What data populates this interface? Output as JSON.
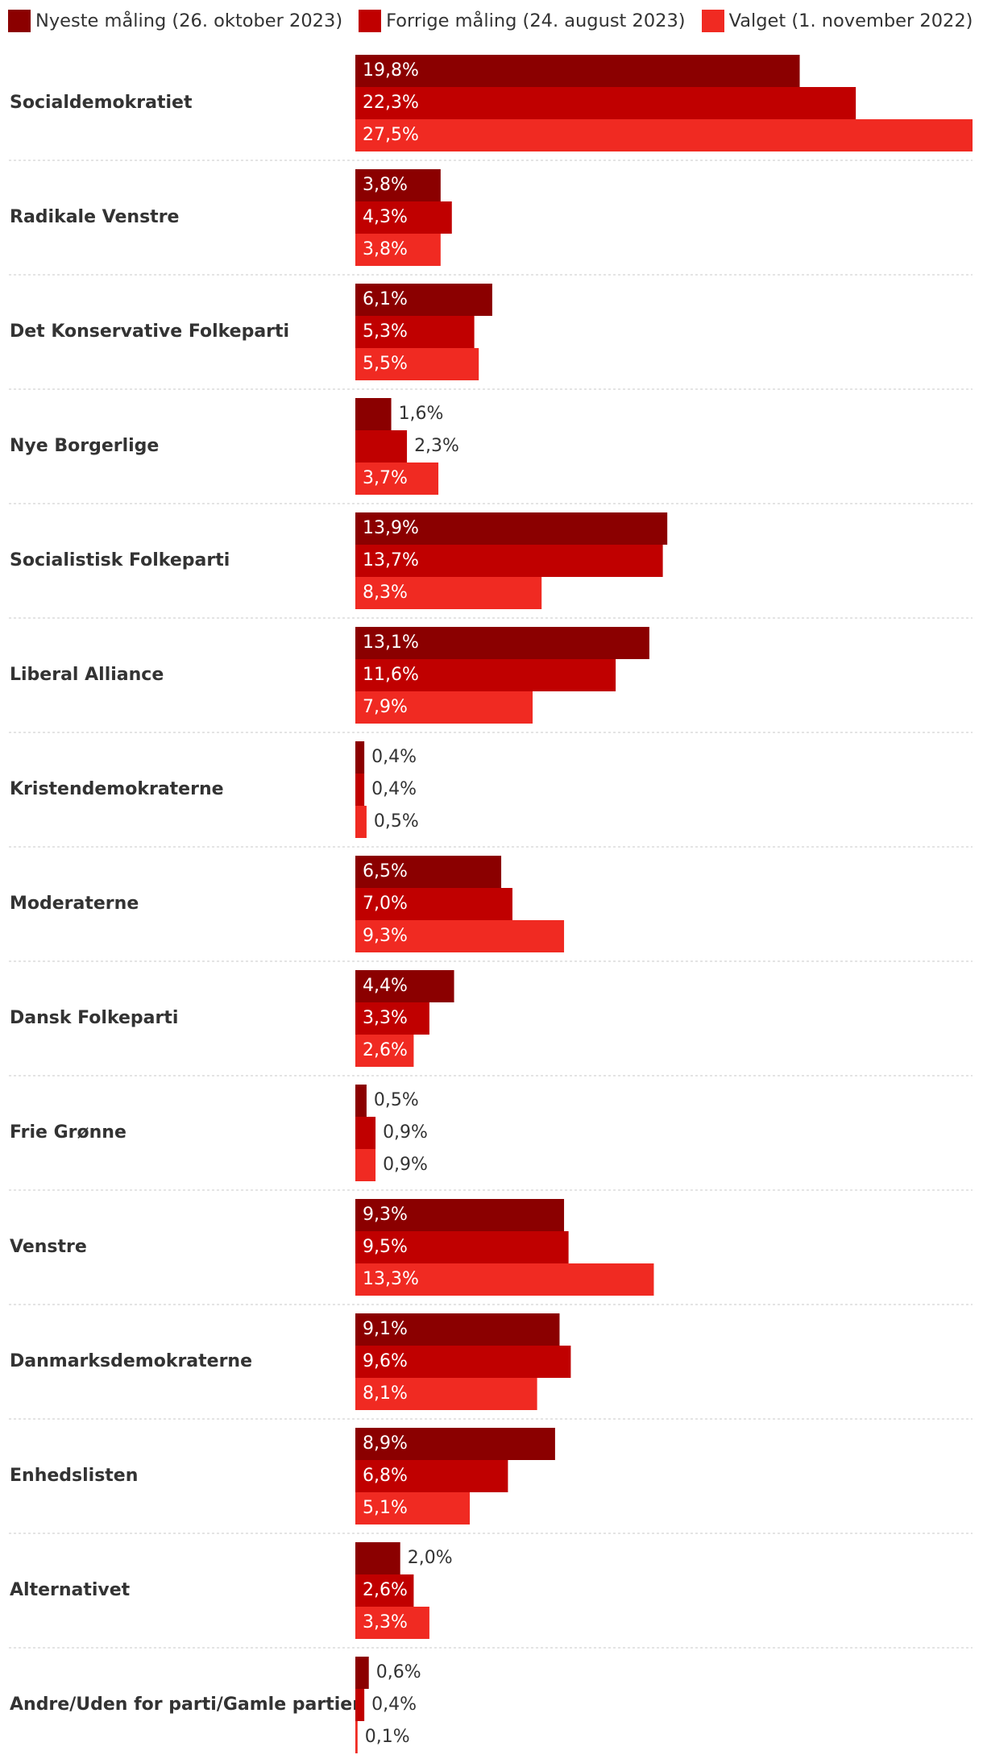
{
  "chart_data": {
    "type": "bar",
    "orientation": "horizontal",
    "categories": [
      "Socialdemokratiet",
      "Radikale Venstre",
      "Det Konservative Folkeparti",
      "Nye Borgerlige",
      "Socialistisk Folkeparti",
      "Liberal Alliance",
      "Kristendemokraterne",
      "Moderaterne",
      "Dansk Folkeparti",
      "Frie Grønne",
      "Venstre",
      "Danmarksdemokraterne",
      "Enhedslisten",
      "Alternativet",
      "Andre/Uden for parti/Gamle partier"
    ],
    "series": [
      {
        "name": "Nyeste måling (26. oktober 2023)",
        "color": "#8b0000",
        "values": [
          19.8,
          3.8,
          6.1,
          1.6,
          13.9,
          13.1,
          0.4,
          6.5,
          4.4,
          0.5,
          9.3,
          9.1,
          8.9,
          2.0,
          0.6
        ],
        "labels": [
          "19,8%",
          "3,8%",
          "6,1%",
          "1,6%",
          "13,9%",
          "13,1%",
          "0,4%",
          "6,5%",
          "4,4%",
          "0,5%",
          "9,3%",
          "9,1%",
          "8,9%",
          "2,0%",
          "0,6%"
        ]
      },
      {
        "name": "Forrige måling (24. august 2023)",
        "color": "#c00000",
        "values": [
          22.3,
          4.3,
          5.3,
          2.3,
          13.7,
          11.6,
          0.4,
          7.0,
          3.3,
          0.9,
          9.5,
          9.6,
          6.8,
          2.6,
          0.4
        ],
        "labels": [
          "22,3%",
          "4,3%",
          "5,3%",
          "2,3%",
          "13,7%",
          "11,6%",
          "0,4%",
          "7,0%",
          "3,3%",
          "0,9%",
          "9,5%",
          "9,6%",
          "6,8%",
          "2,6%",
          "0,4%"
        ]
      },
      {
        "name": "Valget (1. november 2022)",
        "color": "#f02a22",
        "values": [
          27.5,
          3.8,
          5.5,
          3.7,
          8.3,
          7.9,
          0.5,
          9.3,
          2.6,
          0.9,
          13.3,
          8.1,
          5.1,
          3.3,
          0.1
        ],
        "labels": [
          "27,5%",
          "3,8%",
          "5,5%",
          "3,7%",
          "8,3%",
          "7,9%",
          "0,5%",
          "9,3%",
          "2,6%",
          "0,9%",
          "13,3%",
          "8,1%",
          "5,1%",
          "3,3%",
          "0,1%"
        ]
      }
    ],
    "xlim": [
      0,
      27.5
    ],
    "legend": "top",
    "grid": false,
    "title": "",
    "xlabel": "",
    "ylabel": ""
  }
}
